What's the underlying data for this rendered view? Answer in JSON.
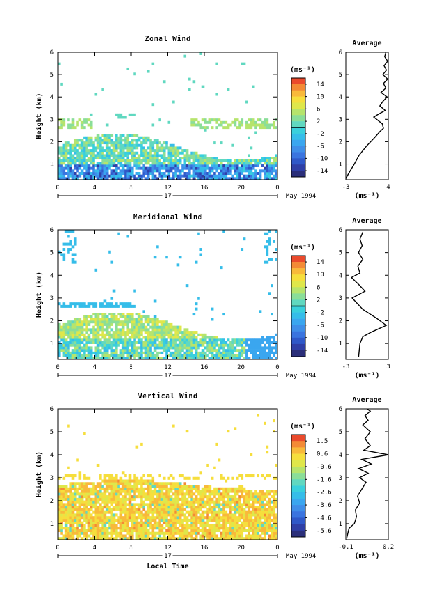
{
  "chart_data": [
    {
      "type": "heatmap",
      "title": "Zonal Wind",
      "ylabel": "Height (km)",
      "xticks": [
        "0",
        "4",
        "8",
        "12",
        "16",
        "20",
        "0"
      ],
      "xlim": [
        0,
        24
      ],
      "ylim": [
        0.3,
        6.0
      ],
      "yticks": [
        "1",
        "2",
        "3",
        "4",
        "5",
        "6"
      ],
      "date_marker": "17",
      "date_label": "May 1994",
      "colorbar": {
        "unit": "(ms⁻¹)",
        "levels": [
          "14",
          "10",
          "6",
          "2",
          "-2",
          "-6",
          "-10",
          "-14"
        ],
        "range": [
          -16,
          16
        ],
        "zero_line_value": 0
      },
      "profile": {
        "title": "Average",
        "unit": "(ms⁻¹)",
        "xticks": [
          "-3",
          "4"
        ],
        "xlim": [
          -3,
          4
        ],
        "yticks": [
          "1",
          "2",
          "3",
          "4",
          "5",
          "6"
        ],
        "points": [
          [
            -3.0,
            0.35
          ],
          [
            -2.5,
            0.6
          ],
          [
            -1.6,
            1.0
          ],
          [
            -0.8,
            1.4
          ],
          [
            0.4,
            1.8
          ],
          [
            1.8,
            2.2
          ],
          [
            2.6,
            2.45
          ],
          [
            3.2,
            2.6
          ],
          [
            3.0,
            2.8
          ],
          [
            1.6,
            3.1
          ],
          [
            2.2,
            3.2
          ],
          [
            3.5,
            3.4
          ],
          [
            2.6,
            3.6
          ],
          [
            3.1,
            3.8
          ],
          [
            3.8,
            4.0
          ],
          [
            2.8,
            4.2
          ],
          [
            3.6,
            4.4
          ],
          [
            3.2,
            4.6
          ],
          [
            3.9,
            4.8
          ],
          [
            3.1,
            5.0
          ],
          [
            3.7,
            5.2
          ],
          [
            3.3,
            5.4
          ],
          [
            3.9,
            5.6
          ],
          [
            3.4,
            5.8
          ],
          [
            3.6,
            6.0
          ]
        ]
      }
    },
    {
      "type": "heatmap",
      "title": "Meridional Wind",
      "ylabel": "Height (km)",
      "xticks": [
        "0",
        "4",
        "8",
        "12",
        "16",
        "20",
        "0"
      ],
      "xlim": [
        0,
        24
      ],
      "ylim": [
        0.3,
        6.0
      ],
      "yticks": [
        "1",
        "2",
        "3",
        "4",
        "5",
        "6"
      ],
      "date_marker": "17",
      "date_label": "May 1994",
      "colorbar": {
        "unit": "(ms⁻¹)",
        "levels": [
          "14",
          "10",
          "6",
          "2",
          "-2",
          "-6",
          "-10",
          "-14"
        ],
        "range": [
          -16,
          16
        ],
        "zero_line_value": 0
      },
      "profile": {
        "title": "Average",
        "unit": "(ms⁻¹)",
        "xticks": [
          "-3",
          "3"
        ],
        "xlim": [
          -3,
          3
        ],
        "yticks": [
          "1",
          "2",
          "3",
          "4",
          "5",
          "6"
        ],
        "points": [
          [
            -1.2,
            0.4
          ],
          [
            -1.0,
            1.0
          ],
          [
            -0.6,
            1.3
          ],
          [
            0.6,
            1.5
          ],
          [
            2.7,
            1.8
          ],
          [
            1.4,
            2.1
          ],
          [
            -0.6,
            2.5
          ],
          [
            -2.1,
            3.0
          ],
          [
            -0.3,
            3.3
          ],
          [
            -1.2,
            3.6
          ],
          [
            -2.2,
            3.9
          ],
          [
            -1.0,
            4.1
          ],
          [
            -1.3,
            4.4
          ],
          [
            -0.6,
            4.7
          ],
          [
            -1.2,
            5.0
          ],
          [
            -0.7,
            5.3
          ],
          [
            -1.0,
            5.6
          ],
          [
            -0.6,
            5.9
          ]
        ]
      }
    },
    {
      "type": "heatmap",
      "title": "Vertical Wind",
      "ylabel": "Height (km)",
      "xlabel": "Local Time",
      "xticks": [
        "0",
        "4",
        "8",
        "12",
        "16",
        "20",
        "0"
      ],
      "xlim": [
        0,
        24
      ],
      "ylim": [
        0.3,
        6.0
      ],
      "yticks": [
        "1",
        "2",
        "3",
        "4",
        "5",
        "6"
      ],
      "date_marker": "17",
      "date_label": "May 1994",
      "colorbar": {
        "unit": "(ms⁻¹)",
        "levels": [
          "1.5",
          "0.6",
          "-0.6",
          "-1.6",
          "-2.6",
          "-3.6",
          "-4.6",
          "-5.6"
        ],
        "range": [
          -6.0,
          2.0
        ]
      },
      "profile": {
        "title": "Average",
        "unit": "(ms⁻¹)",
        "xticks": [
          "-0.1",
          "0.2"
        ],
        "xlim": [
          -0.15,
          0.25
        ],
        "yticks": [
          "1",
          "2",
          "3",
          "4",
          "5",
          "6"
        ],
        "points": [
          [
            -0.14,
            0.4
          ],
          [
            -0.12,
            0.8
          ],
          [
            -0.07,
            1.0
          ],
          [
            -0.05,
            1.3
          ],
          [
            -0.06,
            1.6
          ],
          [
            -0.02,
            1.9
          ],
          [
            -0.04,
            2.2
          ],
          [
            0.0,
            2.5
          ],
          [
            0.04,
            2.8
          ],
          [
            -0.02,
            3.0
          ],
          [
            0.06,
            3.2
          ],
          [
            -0.03,
            3.4
          ],
          [
            0.09,
            3.6
          ],
          [
            0.0,
            3.8
          ],
          [
            0.25,
            4.0
          ],
          [
            0.02,
            4.2
          ],
          [
            0.08,
            4.4
          ],
          [
            0.03,
            4.7
          ],
          [
            0.08,
            5.0
          ],
          [
            0.01,
            5.3
          ],
          [
            0.06,
            5.5
          ],
          [
            0.03,
            5.7
          ],
          [
            0.08,
            5.9
          ],
          [
            0.05,
            6.0
          ]
        ]
      }
    }
  ]
}
